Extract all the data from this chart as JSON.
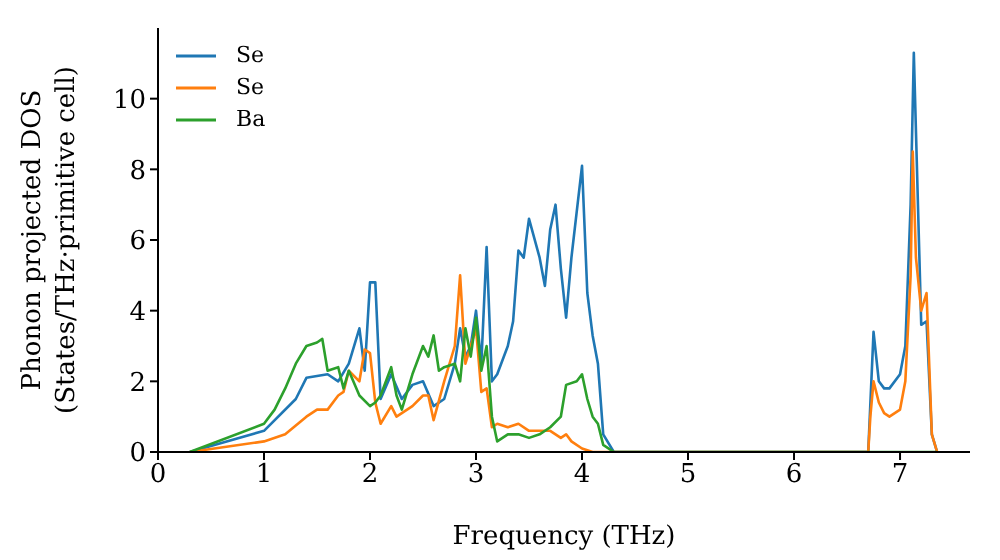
{
  "chart_data": {
    "type": "line",
    "xlabel": "Frequency (THz)",
    "ylabel": "Phonon projected DOS\n(States/THz·primitive cell)",
    "xlim": [
      0,
      7.66
    ],
    "xticks": [
      0,
      1,
      2,
      3,
      4,
      5,
      6,
      7
    ],
    "ylim": [
      0,
      12
    ],
    "yticks": [
      0,
      2,
      4,
      6,
      8,
      10
    ],
    "legend": "top left",
    "marker": "none",
    "line_style": "solid",
    "series": [
      {
        "name": "Se",
        "color": "#1f77b4",
        "x": [
          0.3,
          1.0,
          1.3,
          1.4,
          1.6,
          1.7,
          1.8,
          1.9,
          1.95,
          2.0,
          2.05,
          2.1,
          2.2,
          2.3,
          2.4,
          2.5,
          2.6,
          2.7,
          2.8,
          2.85,
          2.9,
          2.95,
          3.0,
          3.05,
          3.1,
          3.15,
          3.2,
          3.3,
          3.35,
          3.4,
          3.45,
          3.5,
          3.6,
          3.65,
          3.7,
          3.75,
          3.8,
          3.85,
          3.9,
          4.0,
          4.05,
          4.1,
          4.15,
          4.2,
          4.3,
          6.7,
          6.75,
          6.8,
          6.85,
          6.9,
          7.0,
          7.05,
          7.1,
          7.13,
          7.2,
          7.25,
          7.3,
          7.35
        ],
        "values": [
          0,
          0.6,
          1.5,
          2.1,
          2.2,
          2.0,
          2.5,
          3.5,
          2.3,
          4.8,
          4.8,
          1.5,
          2.2,
          1.5,
          1.9,
          2.0,
          1.3,
          1.5,
          2.5,
          3.5,
          2.7,
          3.0,
          4.0,
          2.5,
          5.8,
          2.0,
          2.2,
          3.0,
          3.7,
          5.7,
          5.5,
          6.6,
          5.5,
          4.7,
          6.3,
          7.0,
          5.2,
          3.8,
          5.5,
          8.1,
          4.5,
          3.3,
          2.5,
          0.5,
          0,
          0,
          3.4,
          2.0,
          1.8,
          1.8,
          2.2,
          3.0,
          7.0,
          11.3,
          3.6,
          3.7,
          0.5,
          0
        ]
      },
      {
        "name": "Se",
        "color": "#ff7f0e",
        "x": [
          0.3,
          1.0,
          1.2,
          1.4,
          1.5,
          1.6,
          1.7,
          1.75,
          1.8,
          1.9,
          1.95,
          2.0,
          2.05,
          2.1,
          2.2,
          2.25,
          2.3,
          2.4,
          2.5,
          2.55,
          2.6,
          2.7,
          2.8,
          2.85,
          2.9,
          3.0,
          3.05,
          3.1,
          3.15,
          3.2,
          3.3,
          3.4,
          3.5,
          3.7,
          3.8,
          3.85,
          3.9,
          4.0,
          4.1,
          6.7,
          6.72,
          6.75,
          6.8,
          6.85,
          6.9,
          7.0,
          7.05,
          7.1,
          7.12,
          7.15,
          7.2,
          7.25,
          7.3,
          7.35
        ],
        "values": [
          0,
          0.3,
          0.5,
          1.0,
          1.2,
          1.2,
          1.6,
          1.7,
          2.3,
          2.0,
          2.9,
          2.8,
          1.4,
          0.8,
          1.3,
          1.0,
          1.1,
          1.3,
          1.6,
          1.6,
          0.9,
          2.0,
          3.0,
          5.0,
          2.5,
          3.5,
          1.7,
          1.8,
          0.7,
          0.8,
          0.7,
          0.8,
          0.6,
          0.6,
          0.4,
          0.5,
          0.3,
          0.1,
          0,
          0,
          1.0,
          2.0,
          1.4,
          1.1,
          1.0,
          1.2,
          2.0,
          5.0,
          8.5,
          5.5,
          4.0,
          4.5,
          0.5,
          0
        ]
      },
      {
        "name": "Ba",
        "color": "#2ca02c",
        "x": [
          0.3,
          1.0,
          1.1,
          1.2,
          1.3,
          1.4,
          1.5,
          1.55,
          1.6,
          1.7,
          1.75,
          1.8,
          1.9,
          2.0,
          2.05,
          2.1,
          2.2,
          2.25,
          2.3,
          2.4,
          2.5,
          2.55,
          2.6,
          2.65,
          2.7,
          2.8,
          2.85,
          2.9,
          2.95,
          3.0,
          3.05,
          3.1,
          3.15,
          3.2,
          3.3,
          3.4,
          3.5,
          3.6,
          3.7,
          3.8,
          3.85,
          3.95,
          4.0,
          4.05,
          4.1,
          4.15,
          4.2,
          4.3,
          7.35
        ],
        "values": [
          0,
          0.8,
          1.2,
          1.8,
          2.5,
          3.0,
          3.1,
          3.2,
          2.3,
          2.4,
          1.8,
          2.3,
          1.6,
          1.3,
          1.4,
          1.6,
          2.4,
          1.6,
          1.2,
          2.2,
          3.0,
          2.7,
          3.3,
          2.3,
          2.4,
          2.5,
          2.0,
          3.5,
          2.7,
          3.8,
          2.3,
          3.0,
          1.0,
          0.3,
          0.5,
          0.5,
          0.4,
          0.5,
          0.7,
          1.0,
          1.9,
          2.0,
          2.2,
          1.5,
          1.0,
          0.8,
          0.2,
          0,
          0
        ]
      }
    ]
  }
}
